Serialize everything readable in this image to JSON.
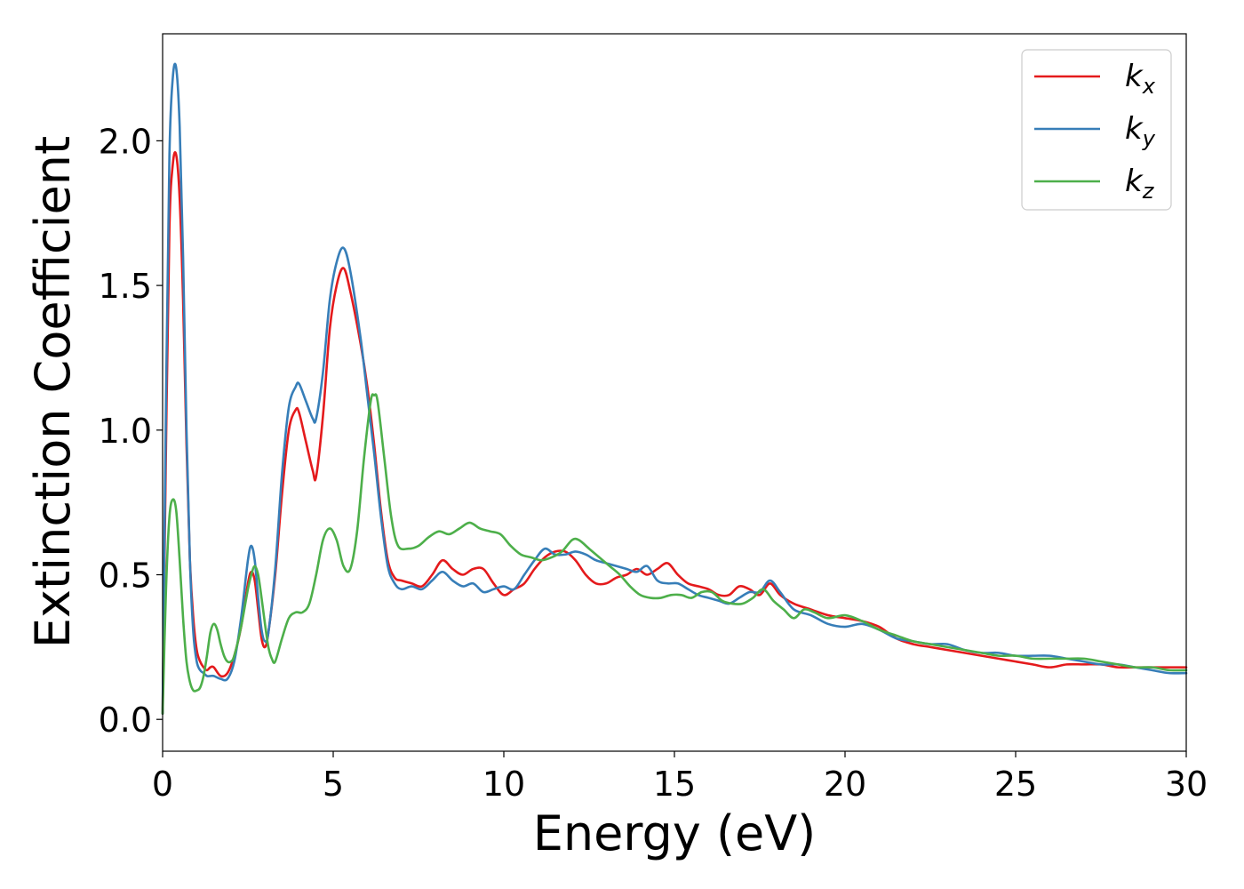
{
  "chart_data": {
    "type": "line",
    "xlabel": "Energy (eV)",
    "ylabel": "Extinction Coefficient",
    "xlim": [
      0,
      30
    ],
    "ylim": [
      -0.11,
      2.37
    ],
    "xticks": [
      0,
      5,
      10,
      15,
      20,
      25,
      30
    ],
    "xtick_labels": [
      "0",
      "5",
      "10",
      "15",
      "20",
      "25",
      "30"
    ],
    "yticks": [
      0.0,
      0.5,
      1.0,
      1.5,
      2.0
    ],
    "ytick_labels": [
      "0.0",
      "0.5",
      "1.0",
      "1.5",
      "2.0"
    ],
    "grid": false,
    "legend_position": "top-right",
    "series": [
      {
        "name": "k_x",
        "label_main": "k",
        "label_sub": "x",
        "color": "#e41a1c",
        "x": [
          0,
          0.1,
          0.2,
          0.3,
          0.4,
          0.5,
          0.6,
          0.7,
          0.8,
          0.9,
          1.0,
          1.1,
          1.2,
          1.3,
          1.4,
          1.5,
          1.7,
          1.9,
          2.1,
          2.3,
          2.5,
          2.6,
          2.7,
          2.8,
          2.9,
          3.0,
          3.1,
          3.3,
          3.5,
          3.7,
          3.9,
          4.0,
          4.2,
          4.4,
          4.5,
          4.7,
          4.9,
          5.1,
          5.3,
          5.5,
          5.8,
          6.0,
          6.2,
          6.4,
          6.6,
          6.8,
          7.0,
          7.3,
          7.6,
          7.9,
          8.2,
          8.5,
          8.8,
          9.1,
          9.4,
          9.7,
          10.0,
          10.3,
          10.6,
          10.9,
          11.2,
          11.5,
          11.8,
          12.1,
          12.4,
          12.7,
          13.0,
          13.3,
          13.6,
          13.9,
          14.2,
          14.5,
          14.8,
          15.1,
          15.4,
          15.7,
          16.0,
          16.3,
          16.6,
          16.9,
          17.2,
          17.5,
          17.8,
          18.1,
          18.5,
          19.0,
          19.5,
          20.0,
          20.5,
          21.0,
          21.5,
          22.0,
          22.5,
          23.0,
          23.5,
          24.0,
          24.5,
          25.0,
          25.5,
          26.0,
          26.5,
          27.0,
          27.5,
          28.0,
          28.5,
          29.0,
          29.5,
          30.0
        ],
        "y": [
          0.02,
          0.95,
          1.7,
          1.92,
          1.95,
          1.8,
          1.45,
          0.95,
          0.55,
          0.35,
          0.24,
          0.2,
          0.18,
          0.17,
          0.18,
          0.18,
          0.15,
          0.16,
          0.22,
          0.32,
          0.47,
          0.51,
          0.48,
          0.38,
          0.28,
          0.25,
          0.3,
          0.5,
          0.78,
          1.0,
          1.07,
          1.06,
          0.96,
          0.86,
          0.84,
          1.05,
          1.35,
          1.5,
          1.56,
          1.48,
          1.3,
          1.15,
          0.95,
          0.72,
          0.55,
          0.49,
          0.48,
          0.47,
          0.46,
          0.5,
          0.55,
          0.52,
          0.5,
          0.52,
          0.52,
          0.47,
          0.43,
          0.45,
          0.47,
          0.52,
          0.56,
          0.58,
          0.58,
          0.55,
          0.5,
          0.47,
          0.47,
          0.49,
          0.5,
          0.52,
          0.5,
          0.52,
          0.54,
          0.5,
          0.47,
          0.46,
          0.45,
          0.43,
          0.43,
          0.46,
          0.45,
          0.43,
          0.47,
          0.43,
          0.4,
          0.38,
          0.36,
          0.35,
          0.34,
          0.32,
          0.28,
          0.26,
          0.25,
          0.24,
          0.23,
          0.22,
          0.21,
          0.2,
          0.19,
          0.18,
          0.19,
          0.19,
          0.19,
          0.18,
          0.18,
          0.18,
          0.18,
          0.18
        ]
      },
      {
        "name": "k_y",
        "label_main": "k",
        "label_sub": "y",
        "color": "#377eb8",
        "x": [
          0,
          0.1,
          0.2,
          0.3,
          0.4,
          0.5,
          0.6,
          0.7,
          0.8,
          0.9,
          1.0,
          1.1,
          1.2,
          1.3,
          1.4,
          1.5,
          1.7,
          1.9,
          2.1,
          2.3,
          2.5,
          2.6,
          2.7,
          2.8,
          2.9,
          3.0,
          3.1,
          3.3,
          3.5,
          3.7,
          3.9,
          4.0,
          4.2,
          4.4,
          4.5,
          4.7,
          4.9,
          5.1,
          5.3,
          5.5,
          5.8,
          6.0,
          6.2,
          6.4,
          6.6,
          6.8,
          7.0,
          7.3,
          7.6,
          7.9,
          8.2,
          8.5,
          8.8,
          9.1,
          9.4,
          9.7,
          10.0,
          10.3,
          10.6,
          10.9,
          11.2,
          11.5,
          11.8,
          12.1,
          12.4,
          12.7,
          13.0,
          13.3,
          13.6,
          13.9,
          14.2,
          14.5,
          14.8,
          15.1,
          15.4,
          15.7,
          16.0,
          16.3,
          16.6,
          16.9,
          17.2,
          17.5,
          17.8,
          18.1,
          18.5,
          19.0,
          19.5,
          20.0,
          20.5,
          21.0,
          21.5,
          22.0,
          22.5,
          23.0,
          23.5,
          24.0,
          24.5,
          25.0,
          25.5,
          26.0,
          26.5,
          27.0,
          27.5,
          28.0,
          28.5,
          29.0,
          29.5,
          30.0
        ],
        "y": [
          0.02,
          1.1,
          1.95,
          2.22,
          2.25,
          2.05,
          1.6,
          1.0,
          0.55,
          0.3,
          0.2,
          0.17,
          0.16,
          0.15,
          0.15,
          0.15,
          0.14,
          0.14,
          0.2,
          0.35,
          0.55,
          0.6,
          0.55,
          0.42,
          0.31,
          0.27,
          0.3,
          0.52,
          0.85,
          1.08,
          1.15,
          1.16,
          1.1,
          1.04,
          1.04,
          1.2,
          1.45,
          1.58,
          1.63,
          1.55,
          1.32,
          1.12,
          0.92,
          0.7,
          0.53,
          0.47,
          0.45,
          0.46,
          0.45,
          0.48,
          0.51,
          0.48,
          0.46,
          0.47,
          0.44,
          0.45,
          0.46,
          0.45,
          0.5,
          0.55,
          0.59,
          0.57,
          0.57,
          0.58,
          0.57,
          0.55,
          0.54,
          0.53,
          0.52,
          0.51,
          0.53,
          0.48,
          0.47,
          0.47,
          0.45,
          0.43,
          0.42,
          0.41,
          0.4,
          0.42,
          0.44,
          0.44,
          0.48,
          0.44,
          0.38,
          0.36,
          0.33,
          0.32,
          0.33,
          0.31,
          0.28,
          0.27,
          0.26,
          0.26,
          0.24,
          0.23,
          0.23,
          0.22,
          0.22,
          0.22,
          0.21,
          0.2,
          0.19,
          0.19,
          0.18,
          0.17,
          0.16,
          0.16
        ]
      },
      {
        "name": "k_z",
        "label_main": "k",
        "label_sub": "z",
        "color": "#4daf4a",
        "x": [
          0,
          0.1,
          0.2,
          0.3,
          0.4,
          0.5,
          0.6,
          0.7,
          0.8,
          0.9,
          1.0,
          1.1,
          1.2,
          1.3,
          1.4,
          1.5,
          1.6,
          1.7,
          1.8,
          1.9,
          2.0,
          2.1,
          2.3,
          2.5,
          2.6,
          2.7,
          2.8,
          2.9,
          3.0,
          3.1,
          3.2,
          3.3,
          3.5,
          3.7,
          3.9,
          4.1,
          4.3,
          4.5,
          4.7,
          4.9,
          5.1,
          5.3,
          5.5,
          5.7,
          5.9,
          6.1,
          6.2,
          6.3,
          6.5,
          6.7,
          6.9,
          7.2,
          7.5,
          7.8,
          8.1,
          8.4,
          8.7,
          9.0,
          9.3,
          9.6,
          9.9,
          10.2,
          10.5,
          10.8,
          11.1,
          11.4,
          11.7,
          12.0,
          12.2,
          12.5,
          12.8,
          13.1,
          13.4,
          13.7,
          14.0,
          14.3,
          14.6,
          14.9,
          15.2,
          15.5,
          15.8,
          16.1,
          16.4,
          16.7,
          17.0,
          17.3,
          17.6,
          17.9,
          18.2,
          18.5,
          18.8,
          19.1,
          19.5,
          20.0,
          20.5,
          21.0,
          21.5,
          22.0,
          22.5,
          23.0,
          23.5,
          24.0,
          24.5,
          25.0,
          25.5,
          26.0,
          26.5,
          27.0,
          27.5,
          28.0,
          28.5,
          29.0,
          29.5,
          30.0
        ],
        "y": [
          0.02,
          0.45,
          0.7,
          0.76,
          0.72,
          0.55,
          0.35,
          0.2,
          0.13,
          0.1,
          0.1,
          0.11,
          0.15,
          0.22,
          0.3,
          0.33,
          0.31,
          0.26,
          0.22,
          0.2,
          0.2,
          0.22,
          0.32,
          0.45,
          0.5,
          0.53,
          0.5,
          0.42,
          0.33,
          0.25,
          0.21,
          0.2,
          0.28,
          0.35,
          0.37,
          0.37,
          0.4,
          0.5,
          0.62,
          0.66,
          0.62,
          0.53,
          0.52,
          0.65,
          0.9,
          1.1,
          1.12,
          1.1,
          0.9,
          0.7,
          0.6,
          0.59,
          0.6,
          0.63,
          0.65,
          0.64,
          0.66,
          0.68,
          0.66,
          0.65,
          0.64,
          0.6,
          0.57,
          0.56,
          0.55,
          0.56,
          0.58,
          0.62,
          0.62,
          0.59,
          0.56,
          0.53,
          0.5,
          0.46,
          0.43,
          0.42,
          0.42,
          0.43,
          0.43,
          0.42,
          0.44,
          0.44,
          0.41,
          0.4,
          0.4,
          0.42,
          0.45,
          0.41,
          0.38,
          0.35,
          0.38,
          0.37,
          0.35,
          0.36,
          0.34,
          0.31,
          0.29,
          0.27,
          0.26,
          0.25,
          0.24,
          0.23,
          0.22,
          0.22,
          0.21,
          0.21,
          0.21,
          0.21,
          0.2,
          0.19,
          0.18,
          0.18,
          0.17,
          0.17
        ]
      }
    ]
  }
}
